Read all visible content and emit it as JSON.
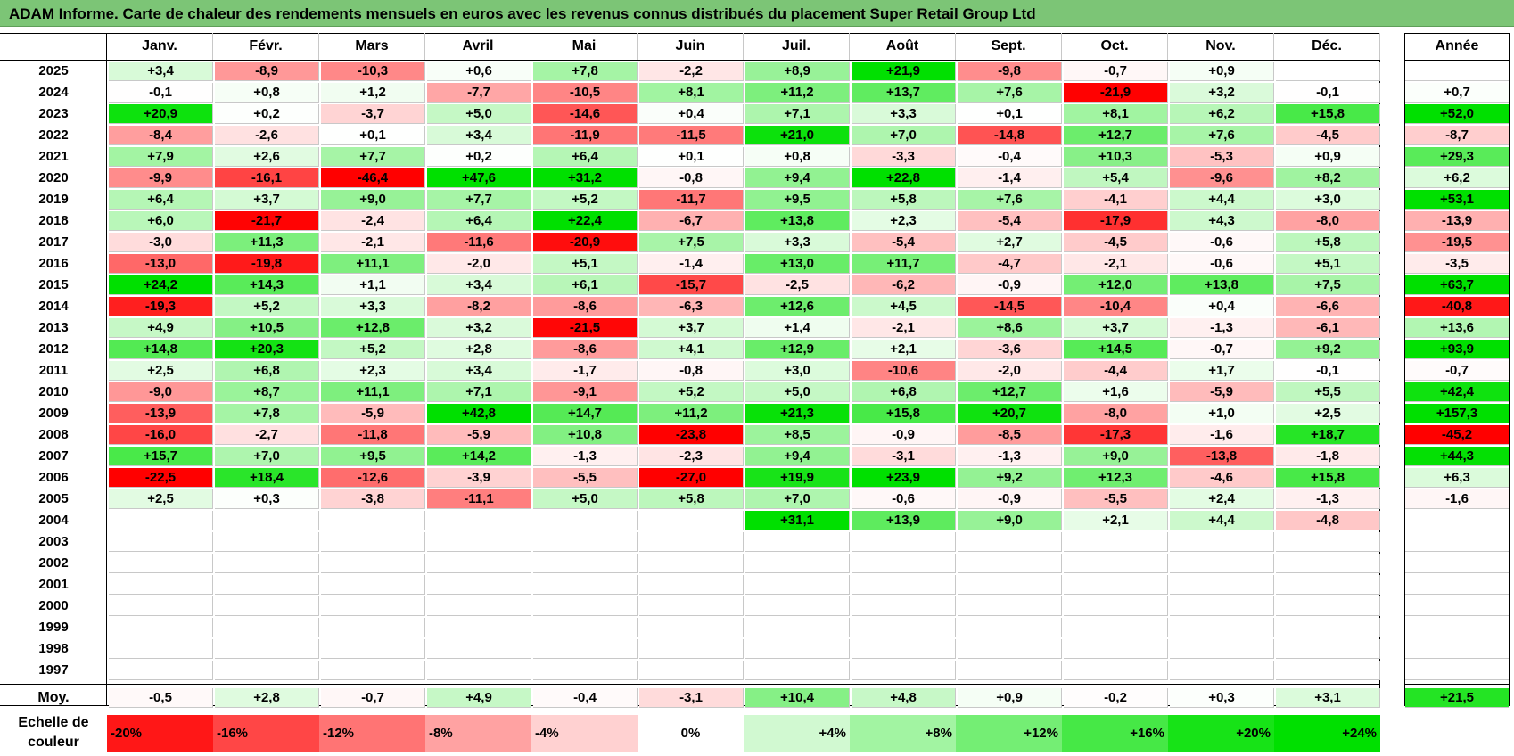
{
  "title": "ADAM Informe. Carte de chaleur des rendements mensuels en euros avec les revenus connus distribués du placement Super Retail Group Ltd",
  "months": [
    "Janv.",
    "Févr.",
    "Mars",
    "Avril",
    "Mai",
    "Juin",
    "Juil.",
    "Août",
    "Sept.",
    "Oct.",
    "Nov.",
    "Déc."
  ],
  "year_header": "Année",
  "avg_label": "Moy.",
  "scale_label": "Echelle de couleur",
  "colors": {
    "positive_max": "#00e000",
    "negative_max": "#ff0000",
    "neutral": "#ffffff",
    "title_bg": "#7cc576"
  },
  "chart_data": {
    "type": "heatmap",
    "title": "ADAM Informe. Carte de chaleur des rendements mensuels en euros avec les revenus connus distribués du placement Super Retail Group Ltd",
    "unit": "%",
    "rows": [
      {
        "year": "2025",
        "months": [
          "+3,4",
          "-8,9",
          "-10,3",
          "+0,6",
          "+7,8",
          "-2,2",
          "+8,9",
          "+21,9",
          "-9,8",
          "-0,7",
          "+0,9",
          ""
        ],
        "annual": ""
      },
      {
        "year": "2024",
        "months": [
          "-0,1",
          "+0,8",
          "+1,2",
          "-7,7",
          "-10,5",
          "+8,1",
          "+11,2",
          "+13,7",
          "+7,6",
          "-21,9",
          "+3,2",
          "-0,1"
        ],
        "annual": "+0,7"
      },
      {
        "year": "2023",
        "months": [
          "+20,9",
          "+0,2",
          "-3,7",
          "+5,0",
          "-14,6",
          "+0,4",
          "+7,1",
          "+3,3",
          "+0,1",
          "+8,1",
          "+6,2",
          "+15,8"
        ],
        "annual": "+52,0"
      },
      {
        "year": "2022",
        "months": [
          "-8,4",
          "-2,6",
          "+0,1",
          "+3,4",
          "-11,9",
          "-11,5",
          "+21,0",
          "+7,0",
          "-14,8",
          "+12,7",
          "+7,6",
          "-4,5"
        ],
        "annual": "-8,7"
      },
      {
        "year": "2021",
        "months": [
          "+7,9",
          "+2,6",
          "+7,7",
          "+0,2",
          "+6,4",
          "+0,1",
          "+0,8",
          "-3,3",
          "-0,4",
          "+10,3",
          "-5,3",
          "+0,9"
        ],
        "annual": "+29,3"
      },
      {
        "year": "2020",
        "months": [
          "-9,9",
          "-16,1",
          "-46,4",
          "+47,6",
          "+31,2",
          "-0,8",
          "+9,4",
          "+22,8",
          "-1,4",
          "+5,4",
          "-9,6",
          "+8,2"
        ],
        "annual": "+6,2"
      },
      {
        "year": "2019",
        "months": [
          "+6,4",
          "+3,7",
          "+9,0",
          "+7,7",
          "+5,2",
          "-11,7",
          "+9,5",
          "+5,8",
          "+7,6",
          "-4,1",
          "+4,4",
          "+3,0"
        ],
        "annual": "+53,1"
      },
      {
        "year": "2018",
        "months": [
          "+6,0",
          "-21,7",
          "-2,4",
          "+6,4",
          "+22,4",
          "-6,7",
          "+13,8",
          "+2,3",
          "-5,4",
          "-17,9",
          "+4,3",
          "-8,0"
        ],
        "annual": "-13,9"
      },
      {
        "year": "2017",
        "months": [
          "-3,0",
          "+11,3",
          "-2,1",
          "-11,6",
          "-20,9",
          "+7,5",
          "+3,3",
          "-5,4",
          "+2,7",
          "-4,5",
          "-0,6",
          "+5,8"
        ],
        "annual": "-19,5"
      },
      {
        "year": "2016",
        "months": [
          "-13,0",
          "-19,8",
          "+11,1",
          "-2,0",
          "+5,1",
          "-1,4",
          "+13,0",
          "+11,7",
          "-4,7",
          "-2,1",
          "-0,6",
          "+5,1"
        ],
        "annual": "-3,5"
      },
      {
        "year": "2015",
        "months": [
          "+24,2",
          "+14,3",
          "+1,1",
          "+3,4",
          "+6,1",
          "-15,7",
          "-2,5",
          "-6,2",
          "-0,9",
          "+12,0",
          "+13,8",
          "+7,5"
        ],
        "annual": "+63,7"
      },
      {
        "year": "2014",
        "months": [
          "-19,3",
          "+5,2",
          "+3,3",
          "-8,2",
          "-8,6",
          "-6,3",
          "+12,6",
          "+4,5",
          "-14,5",
          "-10,4",
          "+0,4",
          "-6,6"
        ],
        "annual": "-40,8"
      },
      {
        "year": "2013",
        "months": [
          "+4,9",
          "+10,5",
          "+12,8",
          "+3,2",
          "-21,5",
          "+3,7",
          "+1,4",
          "-2,1",
          "+8,6",
          "+3,7",
          "-1,3",
          "-6,1"
        ],
        "annual": "+13,6"
      },
      {
        "year": "2012",
        "months": [
          "+14,8",
          "+20,3",
          "+5,2",
          "+2,8",
          "-8,6",
          "+4,1",
          "+12,9",
          "+2,1",
          "-3,6",
          "+14,5",
          "-0,7",
          "+9,2"
        ],
        "annual": "+93,9"
      },
      {
        "year": "2011",
        "months": [
          "+2,5",
          "+6,8",
          "+2,3",
          "+3,4",
          "-1,7",
          "-0,8",
          "+3,0",
          "-10,6",
          "-2,0",
          "-4,4",
          "+1,7",
          "-0,1"
        ],
        "annual": "-0,7"
      },
      {
        "year": "2010",
        "months": [
          "-9,0",
          "+8,7",
          "+11,1",
          "+7,1",
          "-9,1",
          "+5,2",
          "+5,0",
          "+6,8",
          "+12,7",
          "+1,6",
          "-5,9",
          "+5,5"
        ],
        "annual": "+42,4"
      },
      {
        "year": "2009",
        "months": [
          "-13,9",
          "+7,8",
          "-5,9",
          "+42,8",
          "+14,7",
          "+11,2",
          "+21,3",
          "+15,8",
          "+20,7",
          "-8,0",
          "+1,0",
          "+2,5"
        ],
        "annual": "+157,3"
      },
      {
        "year": "2008",
        "months": [
          "-16,0",
          "-2,7",
          "-11,8",
          "-5,9",
          "+10,8",
          "-23,8",
          "+8,5",
          "-0,9",
          "-8,5",
          "-17,3",
          "-1,6",
          "+18,7"
        ],
        "annual": "-45,2"
      },
      {
        "year": "2007",
        "months": [
          "+15,7",
          "+7,0",
          "+9,5",
          "+14,2",
          "-1,3",
          "-2,3",
          "+9,4",
          "-3,1",
          "-1,3",
          "+9,0",
          "-13,8",
          "-1,8"
        ],
        "annual": "+44,3"
      },
      {
        "year": "2006",
        "months": [
          "-22,5",
          "+18,4",
          "-12,6",
          "-3,9",
          "-5,5",
          "-27,0",
          "+19,9",
          "+23,9",
          "+9,2",
          "+12,3",
          "-4,6",
          "+15,8"
        ],
        "annual": "+6,3"
      },
      {
        "year": "2005",
        "months": [
          "+2,5",
          "+0,3",
          "-3,8",
          "-11,1",
          "+5,0",
          "+5,8",
          "+7,0",
          "-0,6",
          "-0,9",
          "-5,5",
          "+2,4",
          "-1,3"
        ],
        "annual": "-1,6"
      },
      {
        "year": "2004",
        "months": [
          "",
          "",
          "",
          "",
          "",
          "",
          "+31,1",
          "+13,9",
          "+9,0",
          "+2,1",
          "+4,4",
          "-4,8"
        ],
        "annual": ""
      },
      {
        "year": "2003",
        "months": [
          "",
          "",
          "",
          "",
          "",
          "",
          "",
          "",
          "",
          "",
          "",
          ""
        ],
        "annual": ""
      },
      {
        "year": "2002",
        "months": [
          "",
          "",
          "",
          "",
          "",
          "",
          "",
          "",
          "",
          "",
          "",
          ""
        ],
        "annual": ""
      },
      {
        "year": "2001",
        "months": [
          "",
          "",
          "",
          "",
          "",
          "",
          "",
          "",
          "",
          "",
          "",
          ""
        ],
        "annual": ""
      },
      {
        "year": "2000",
        "months": [
          "",
          "",
          "",
          "",
          "",
          "",
          "",
          "",
          "",
          "",
          "",
          ""
        ],
        "annual": ""
      },
      {
        "year": "1999",
        "months": [
          "",
          "",
          "",
          "",
          "",
          "",
          "",
          "",
          "",
          "",
          "",
          ""
        ],
        "annual": ""
      },
      {
        "year": "1998",
        "months": [
          "",
          "",
          "",
          "",
          "",
          "",
          "",
          "",
          "",
          "",
          "",
          ""
        ],
        "annual": ""
      },
      {
        "year": "1997",
        "months": [
          "",
          "",
          "",
          "",
          "",
          "",
          "",
          "",
          "",
          "",
          "",
          ""
        ],
        "annual": ""
      }
    ],
    "averages": [
      "-0,5",
      "+2,8",
      "-0,7",
      "+4,9",
      "-0,4",
      "-3,1",
      "+10,4",
      "+4,8",
      "+0,9",
      "-0,2",
      "+0,3",
      "+3,1"
    ],
    "average_annual": "+21,5",
    "scale": [
      "-20%",
      "-16%",
      "-12%",
      "-8%",
      "-4%",
      "0%",
      "+4%",
      "+8%",
      "+12%",
      "+16%",
      "+20%",
      "+24%"
    ]
  }
}
